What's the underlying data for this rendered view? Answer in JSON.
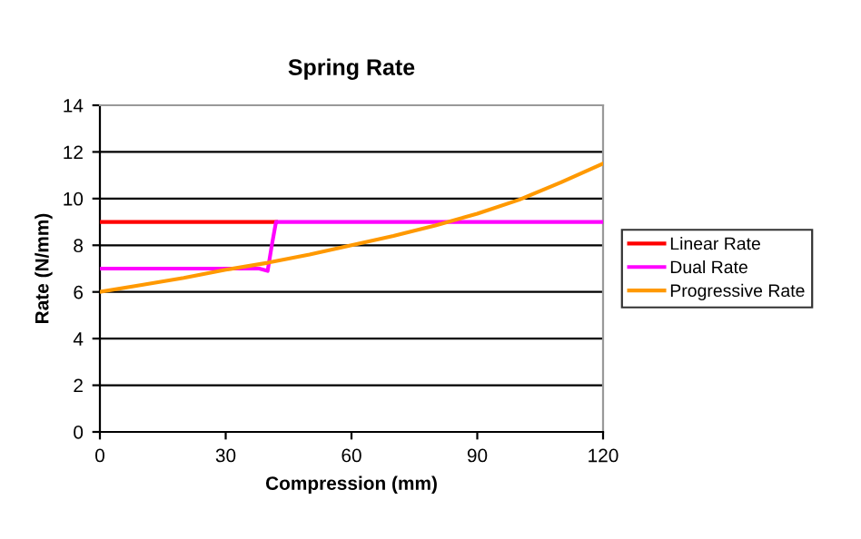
{
  "chart_data": {
    "type": "line",
    "title": "Spring Rate",
    "xlabel": "Compression (mm)",
    "ylabel": "Rate (N/mm)",
    "xlim": [
      0,
      120
    ],
    "xticks": [
      0,
      30,
      60,
      90,
      120
    ],
    "ylim": [
      0,
      14
    ],
    "yticks": [
      0,
      2,
      4,
      6,
      8,
      10,
      12,
      14
    ],
    "grid": "y",
    "legend": "right",
    "marker": "none",
    "line_style": "solid",
    "series": [
      {
        "name": "Linear Rate",
        "color": "#ff0000",
        "x": [
          0,
          42
        ],
        "values": [
          9,
          9
        ]
      },
      {
        "name": "Dual Rate",
        "color": "#ff00ff",
        "x": [
          0,
          38,
          40,
          41,
          42,
          43,
          120
        ],
        "values": [
          7,
          7,
          6.9,
          8,
          9,
          9,
          9
        ]
      },
      {
        "name": "Progressive Rate",
        "color": "#ff9900",
        "x": [
          0,
          10,
          20,
          30,
          40,
          50,
          60,
          70,
          80,
          90,
          100,
          110,
          120
        ],
        "values": [
          6,
          6.3,
          6.6,
          6.95,
          7.25,
          7.6,
          8.0,
          8.4,
          8.85,
          9.35,
          9.95,
          10.7,
          11.5
        ]
      }
    ]
  }
}
